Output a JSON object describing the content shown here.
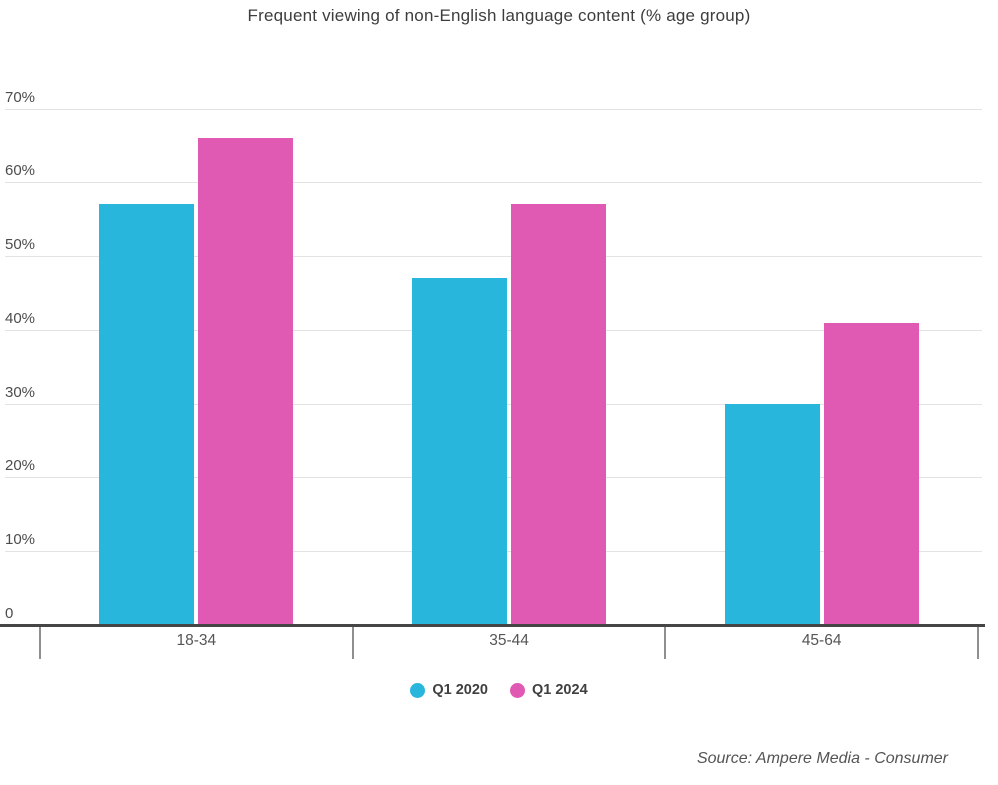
{
  "chart_data": {
    "type": "bar",
    "title": "Frequent viewing of non-English language content (% age group)",
    "categories": [
      "18-34",
      "35-44",
      "45-64"
    ],
    "series": [
      {
        "name": "Q1 2020",
        "color": "#29b6dc",
        "values": [
          57,
          47,
          30
        ]
      },
      {
        "name": "Q1 2024",
        "color": "#e05ab3",
        "values": [
          66,
          57,
          41
        ]
      }
    ],
    "xlabel": "",
    "ylabel": "% age group",
    "ylim": [
      0,
      70
    ],
    "yticks": [
      {
        "value": 70,
        "label": "70%"
      },
      {
        "value": 60,
        "label": "60%"
      },
      {
        "value": 50,
        "label": "50%"
      },
      {
        "value": 40,
        "label": "40%"
      },
      {
        "value": 30,
        "label": "30%"
      },
      {
        "value": 20,
        "label": "20%"
      },
      {
        "value": 10,
        "label": "10%"
      },
      {
        "value": 0,
        "label": "0"
      }
    ],
    "grid": true,
    "legend_position": "bottom"
  },
  "footer": {
    "source": "Source: Ampere Media - Consumer"
  },
  "colors": {
    "series_1": "#29b6dc",
    "series_2": "#e05ab3",
    "gridline": "#e3e3e3",
    "axis_line": "#454545",
    "category_tick": "#8f8f8f"
  }
}
